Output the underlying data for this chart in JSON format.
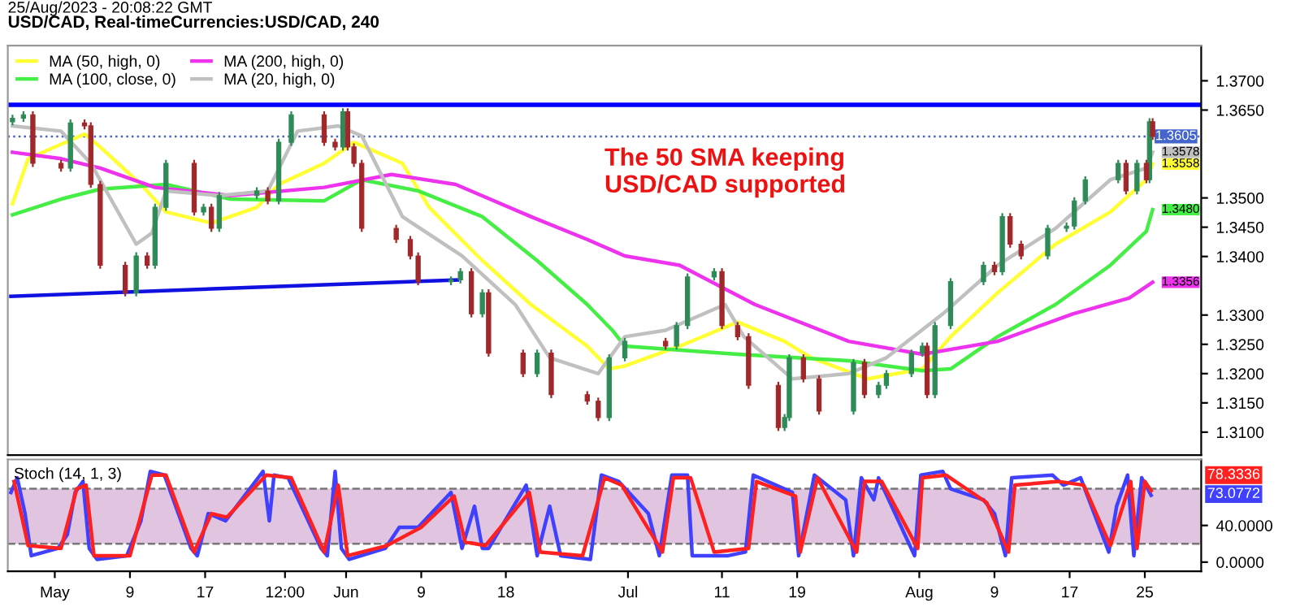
{
  "chart_data": [
    {
      "type": "candlestick",
      "title": "USD/CAD, Real-timeCurrencies:USD/CAD, 240",
      "annotations": [
        "25/Aug/2023 - 20:08:22 GMT",
        "The 50 SMA keeping\nUSD/CAD supported"
      ],
      "xlim": [
        "2023-04-26",
        "2023-08-31"
      ],
      "ylim": [
        1.3061,
        1.376
      ],
      "yticks": [
        {
          "value": 1.37,
          "label": "1.3700"
        },
        {
          "value": 1.365,
          "label": "1.3650"
        },
        {
          "value": 1.35,
          "label": "1.3500"
        },
        {
          "value": 1.345,
          "label": "1.3450"
        },
        {
          "value": 1.34,
          "label": "1.3400"
        },
        {
          "value": 1.33,
          "label": "1.3300"
        },
        {
          "value": 1.325,
          "label": "1.3250"
        },
        {
          "value": 1.32,
          "label": "1.3200"
        },
        {
          "value": 1.315,
          "label": "1.3150"
        },
        {
          "value": 1.31,
          "label": "1.3100"
        }
      ],
      "tick_labels": "y",
      "legend": "top left",
      "ref_lines": [
        {
          "axis": "y",
          "value": 1.3659,
          "color": "#0000ff",
          "line_style": "solid"
        },
        {
          "axis": "y",
          "value": 1.3605,
          "color": "#4466cc",
          "line_style": "dotted",
          "label": "1.3605"
        }
      ],
      "series": [
        {
          "type": "candlestick",
          "color": "#2e8b57",
          "x": [
            "2023-04-26T12:00",
            "2023-04-27T16:00",
            "2023-05-02T16:00",
            "2023-05-09T16:00",
            "2023-05-11T16:00",
            "2023-05-12T20:00",
            "2023-05-16T20:00",
            "2023-05-18T12:00",
            "2023-05-22T12:00",
            "2023-05-24T20:00",
            "2023-05-26T04:00",
            "2023-05-31T16:00",
            "2023-06-12T04:00",
            "2023-06-13T04:00",
            "2023-06-15T12:00",
            "2023-06-21T08:00",
            "2023-06-29T00:00",
            "2023-06-30T16:00",
            "2023-07-06T04:00",
            "2023-07-07T08:00",
            "2023-07-10T04:00",
            "2023-07-17T16:00",
            "2023-07-18T04:00",
            "2023-07-25T00:00",
            "2023-07-27T16:00",
            "2023-07-28T12:00",
            "2023-07-31T04:00",
            "2023-08-01T08:00",
            "2023-08-02T16:00",
            "2023-08-04T08:00",
            "2023-08-07T20:00",
            "2023-08-09T20:00",
            "2023-08-14T16:00",
            "2023-08-16T16:00",
            "2023-08-17T12:00",
            "2023-08-18T16:00",
            "2023-08-22T04:00",
            "2023-08-24T04:00",
            "2023-08-25T12:00"
          ],
          "ohlc": [
            [
              1.363,
              1.3642,
              1.3624,
              1.3636
            ],
            [
              1.3636,
              1.3648,
              1.363,
              1.3642
            ],
            [
              1.3551,
              1.3634,
              1.3545,
              1.3628
            ],
            [
              1.3338,
              1.3407,
              1.3332,
              1.3401
            ],
            [
              1.3385,
              1.349,
              1.3379,
              1.3484
            ],
            [
              1.3484,
              1.3565,
              1.3478,
              1.3559
            ],
            [
              1.3476,
              1.349,
              1.347,
              1.3484
            ],
            [
              1.3448,
              1.351,
              1.3442,
              1.3504
            ],
            [
              1.3504,
              1.3518,
              1.3498,
              1.3512
            ],
            [
              1.3495,
              1.3601,
              1.3489,
              1.3595
            ],
            [
              1.3595,
              1.3648,
              1.3589,
              1.3642
            ],
            [
              1.3587,
              1.3653,
              1.3581,
              1.3647
            ],
            [
              1.3357,
              1.3366,
              1.3351,
              1.336
            ],
            [
              1.336,
              1.338,
              1.3354,
              1.3374
            ],
            [
              1.3302,
              1.3344,
              1.3296,
              1.3338
            ],
            [
              1.32,
              1.3241,
              1.3194,
              1.3235
            ],
            [
              1.3125,
              1.3233,
              1.3119,
              1.3227
            ],
            [
              1.3227,
              1.3261,
              1.3221,
              1.3255
            ],
            [
              1.3247,
              1.3288,
              1.3241,
              1.3282
            ],
            [
              1.3282,
              1.3371,
              1.3276,
              1.3365
            ],
            [
              1.3365,
              1.338,
              1.3359,
              1.3374
            ],
            [
              1.3108,
              1.3131,
              1.3102,
              1.3125
            ],
            [
              1.3125,
              1.3233,
              1.3119,
              1.3227
            ],
            [
              1.3136,
              1.3225,
              1.313,
              1.3219
            ],
            [
              1.3164,
              1.3186,
              1.3158,
              1.318
            ],
            [
              1.318,
              1.3206,
              1.3174,
              1.32
            ],
            [
              1.32,
              1.3241,
              1.3194,
              1.3235
            ],
            [
              1.3235,
              1.3253,
              1.3229,
              1.3247
            ],
            [
              1.3164,
              1.3288,
              1.3158,
              1.3282
            ],
            [
              1.3282,
              1.3363,
              1.3276,
              1.3357
            ],
            [
              1.3357,
              1.3391,
              1.3351,
              1.3385
            ],
            [
              1.3374,
              1.3474,
              1.3368,
              1.3468
            ],
            [
              1.3401,
              1.3454,
              1.3395,
              1.3448
            ],
            [
              1.3448,
              1.3458,
              1.3442,
              1.3452
            ],
            [
              1.3452,
              1.3501,
              1.3446,
              1.3495
            ],
            [
              1.3495,
              1.3537,
              1.3489,
              1.3531
            ],
            [
              1.3531,
              1.3565,
              1.3525,
              1.3559
            ],
            [
              1.3512,
              1.3565,
              1.3506,
              1.3559
            ],
            [
              1.3531,
              1.3636,
              1.3525,
              1.363
            ]
          ]
        },
        {
          "type": "candlestick",
          "color": "#a0282b",
          "x": [
            "2023-04-28T16:00",
            "2023-05-01T16:00",
            "2023-05-04T04:00",
            "2023-05-04T20:00",
            "2023-05-05T20:00",
            "2023-05-08T12:00",
            "2023-05-10T20:00",
            "2023-05-15T20:00",
            "2023-05-17T16:00",
            "2023-05-23T16:00",
            "2023-05-29T16:00",
            "2023-05-30T20:00",
            "2023-06-01T04:00",
            "2023-06-01T20:00",
            "2023-06-02T16:00",
            "2023-06-06T08:00",
            "2023-06-07T20:00",
            "2023-06-08T16:00",
            "2023-06-14T08:00",
            "2023-06-16T04:00",
            "2023-06-19T20:00",
            "2023-06-22T20:00",
            "2023-06-26T16:00",
            "2023-06-27T20:00",
            "2023-07-05T00:00",
            "2023-07-11T00:00",
            "2023-07-12T16:00",
            "2023-07-13T20:00",
            "2023-07-17T00:00",
            "2023-07-19T16:00",
            "2023-07-21T08:00",
            "2023-07-26T04:00",
            "2023-08-01T20:00",
            "2023-08-09T00:00",
            "2023-08-10T16:00",
            "2023-08-11T20:00",
            "2023-08-23T00:00",
            "2023-08-25T04:00",
            "2023-08-25T20:00"
          ],
          "ohlc": [
            [
              1.3642,
              1.3648,
              1.3553,
              1.3559
            ],
            [
              1.3559,
              1.3565,
              1.3545,
              1.3551
            ],
            [
              1.3628,
              1.3634,
              1.3617,
              1.3623
            ],
            [
              1.3623,
              1.3629,
              1.3517,
              1.3523
            ],
            [
              1.3523,
              1.3529,
              1.3379,
              1.3385
            ],
            [
              1.3385,
              1.3391,
              1.3332,
              1.3338
            ],
            [
              1.3401,
              1.3407,
              1.3379,
              1.3385
            ],
            [
              1.3559,
              1.3565,
              1.347,
              1.3476
            ],
            [
              1.3484,
              1.349,
              1.3442,
              1.3448
            ],
            [
              1.3512,
              1.3518,
              1.3489,
              1.3495
            ],
            [
              1.3642,
              1.3648,
              1.3589,
              1.3595
            ],
            [
              1.3595,
              1.3601,
              1.3581,
              1.3587
            ],
            [
              1.3647,
              1.3653,
              1.3581,
              1.3587
            ],
            [
              1.3587,
              1.3593,
              1.3553,
              1.3559
            ],
            [
              1.3559,
              1.3565,
              1.3442,
              1.3448
            ],
            [
              1.3448,
              1.3454,
              1.3423,
              1.3429
            ],
            [
              1.3429,
              1.3435,
              1.3395,
              1.3401
            ],
            [
              1.3401,
              1.3407,
              1.3351,
              1.3357
            ],
            [
              1.3374,
              1.338,
              1.3296,
              1.3302
            ],
            [
              1.3338,
              1.3344,
              1.3229,
              1.3235
            ],
            [
              1.3235,
              1.3241,
              1.3194,
              1.32
            ],
            [
              1.3235,
              1.3241,
              1.3158,
              1.3164
            ],
            [
              1.3164,
              1.317,
              1.3147,
              1.3153
            ],
            [
              1.3153,
              1.3159,
              1.3119,
              1.3125
            ],
            [
              1.3255,
              1.3261,
              1.3241,
              1.3247
            ],
            [
              1.3374,
              1.338,
              1.3276,
              1.3282
            ],
            [
              1.3282,
              1.3288,
              1.3257,
              1.3263
            ],
            [
              1.3263,
              1.3269,
              1.3174,
              1.318
            ],
            [
              1.318,
              1.3186,
              1.3102,
              1.3108
            ],
            [
              1.3227,
              1.3233,
              1.3185,
              1.3191
            ],
            [
              1.3191,
              1.3197,
              1.313,
              1.3136
            ],
            [
              1.3219,
              1.3225,
              1.3158,
              1.3164
            ],
            [
              1.3247,
              1.3253,
              1.3158,
              1.3164
            ],
            [
              1.3385,
              1.3391,
              1.3368,
              1.3374
            ],
            [
              1.3468,
              1.3474,
              1.3415,
              1.3421
            ],
            [
              1.3421,
              1.3427,
              1.3395,
              1.3401
            ],
            [
              1.3559,
              1.3565,
              1.3506,
              1.3512
            ],
            [
              1.3559,
              1.3565,
              1.3525,
              1.3531
            ],
            [
              1.363,
              1.3636,
              1.3599,
              1.3605
            ]
          ]
        },
        {
          "type": "line",
          "name": "MA (50, high, 0)",
          "color": "#ffff33",
          "x": [
            "2023-04-26T12:00",
            "2023-04-28T04:00",
            "2023-05-04T04:00",
            "2023-05-05T20:00",
            "2023-05-10T04:00",
            "2023-05-12T20:00",
            "2023-05-17T16:00",
            "2023-05-22T12:00",
            "2023-05-24T20:00",
            "2023-05-29T16:00",
            "2023-06-01T20:00",
            "2023-06-07T00:00",
            "2023-06-09T20:00",
            "2023-06-15T12:00",
            "2023-06-20T16:00",
            "2023-06-26T16:00",
            "2023-06-29T00:00",
            "2023-06-30T16:00",
            "2023-07-06T12:00",
            "2023-07-12T16:00",
            "2023-07-17T16:00",
            "2023-07-20T12:00",
            "2023-07-26T12:00",
            "2023-08-01T08:00",
            "2023-08-04T08:00",
            "2023-08-09T08:00",
            "2023-08-15T12:00",
            "2023-08-21T08:00",
            "2023-08-25T04:00",
            "2023-08-25T20:00"
          ],
          "values": [
            1.349,
            1.3567,
            1.3609,
            1.3587,
            1.3523,
            1.3476,
            1.3457,
            1.3484,
            1.3523,
            1.3559,
            1.3595,
            1.3559,
            1.3484,
            1.3393,
            1.3318,
            1.3247,
            1.3208,
            1.3213,
            1.3247,
            1.3288,
            1.3255,
            1.3227,
            1.3191,
            1.3208,
            1.3263,
            1.3338,
            1.3421,
            1.3476,
            1.3531,
            1.3558
          ],
          "value_labels": [
            null,
            null,
            null,
            null,
            null,
            null,
            null,
            null,
            null,
            null,
            null,
            null,
            null,
            null,
            null,
            null,
            null,
            null,
            null,
            null,
            null,
            null,
            null,
            null,
            null,
            null,
            null,
            null,
            null,
            "1.3558"
          ]
        },
        {
          "type": "line",
          "name": "MA (100, close, 0)",
          "color": "#44ee44",
          "x": [
            "2023-04-26T12:00",
            "2023-05-01T16:00",
            "2023-05-05T20:00",
            "2023-05-12T20:00",
            "2023-05-19T16:00",
            "2023-05-29T16:00",
            "2023-06-02T16:00",
            "2023-06-08T16:00",
            "2023-06-15T12:00",
            "2023-06-21T08:00",
            "2023-06-26T16:00",
            "2023-06-29T08:00",
            "2023-06-30T16:00",
            "2023-07-12T16:00",
            "2023-07-24T12:00",
            "2023-08-01T08:00",
            "2023-08-04T08:00",
            "2023-08-09T08:00",
            "2023-08-15T12:00",
            "2023-08-21T08:00",
            "2023-08-25T04:00",
            "2023-08-25T20:00"
          ],
          "values": [
            1.3471,
            1.3498,
            1.3515,
            1.3523,
            1.3498,
            1.3495,
            1.3531,
            1.3512,
            1.3468,
            1.3393,
            1.3318,
            1.3274,
            1.3247,
            1.3233,
            1.3222,
            1.3205,
            1.3208,
            1.3263,
            1.3318,
            1.3385,
            1.3443,
            1.348
          ],
          "value_labels": [
            null,
            null,
            null,
            null,
            null,
            null,
            null,
            null,
            null,
            null,
            null,
            null,
            null,
            null,
            null,
            null,
            null,
            null,
            null,
            null,
            null,
            "1.3480"
          ]
        },
        {
          "type": "line",
          "name": "MA (200, high, 0)",
          "color": "#ee33ee",
          "x": [
            "2023-04-26T12:00",
            "2023-05-01T16:00",
            "2023-05-05T20:00",
            "2023-05-11T16:00",
            "2023-05-19T16:00",
            "2023-05-29T16:00",
            "2023-06-05T20:00",
            "2023-06-12T16:00",
            "2023-06-20T16:00",
            "2023-06-26T16:00",
            "2023-06-30T16:00",
            "2023-07-06T12:00",
            "2023-07-14T12:00",
            "2023-07-24T12:00",
            "2023-08-01T08:00",
            "2023-08-09T08:00",
            "2023-08-17T08:00",
            "2023-08-23T08:00",
            "2023-08-25T20:00"
          ],
          "values": [
            1.3578,
            1.3567,
            1.3551,
            1.3518,
            1.3504,
            1.3518,
            1.354,
            1.3523,
            1.3468,
            1.3429,
            1.3401,
            1.3385,
            1.3318,
            1.3255,
            1.3233,
            1.3255,
            1.3302,
            1.3329,
            1.3356
          ],
          "value_labels": [
            null,
            null,
            null,
            null,
            null,
            null,
            null,
            null,
            null,
            null,
            null,
            null,
            null,
            null,
            null,
            null,
            null,
            null,
            "1.3356"
          ]
        },
        {
          "type": "line",
          "name": "MA (20, high, 0)",
          "color": "#c0c0c0",
          "x": [
            "2023-04-26T12:00",
            "2023-05-01T16:00",
            "2023-05-04T20:00",
            "2023-05-09T16:00",
            "2023-05-11T08:00",
            "2023-05-12T20:00",
            "2023-05-18T12:00",
            "2023-05-23T16:00",
            "2023-05-26T20:00",
            "2023-05-31T04:00",
            "2023-06-02T16:00",
            "2023-06-07T00:00",
            "2023-06-13T08:00",
            "2023-06-19T00:00",
            "2023-06-22T16:00",
            "2023-06-27T20:00",
            "2023-06-30T16:00",
            "2023-07-05T00:00",
            "2023-07-11T08:00",
            "2023-07-13T08:00",
            "2023-07-18T12:00",
            "2023-07-24T12:00",
            "2023-07-28T12:00",
            "2023-08-03T12:00",
            "2023-08-09T08:00",
            "2023-08-15T12:00",
            "2023-08-21T08:00",
            "2023-08-25T04:00",
            "2023-08-25T20:00"
          ],
          "values": [
            1.3623,
            1.3614,
            1.3559,
            1.3421,
            1.344,
            1.3512,
            1.3504,
            1.3512,
            1.3614,
            1.3623,
            1.3606,
            1.3468,
            1.3401,
            1.3318,
            1.3227,
            1.32,
            1.3263,
            1.3274,
            1.3318,
            1.3263,
            1.3191,
            1.32,
            1.3227,
            1.3302,
            1.3385,
            1.3448,
            1.3531,
            1.3551,
            1.3578
          ],
          "value_labels": [
            null,
            null,
            null,
            null,
            null,
            null,
            null,
            null,
            null,
            null,
            null,
            null,
            null,
            null,
            null,
            null,
            null,
            null,
            null,
            null,
            null,
            null,
            null,
            null,
            null,
            null,
            null,
            null,
            "1.3578"
          ]
        },
        {
          "type": "line",
          "color": "#1010e0",
          "x": [
            "2023-04-26T08:00",
            "2023-06-12T20:00"
          ],
          "values": [
            1.3332,
            1.336
          ]
        }
      ]
    },
    {
      "type": "line",
      "title": "Stoch (14, 1, 3)",
      "xlim": [
        "2023-04-26",
        "2023-08-31"
      ],
      "ylim": [
        -10,
        112
      ],
      "xticks": [
        {
          "value": "2023-05-01",
          "label": "May"
        },
        {
          "value": "2023-05-09",
          "label": "9"
        },
        {
          "value": "2023-05-17",
          "label": "17"
        },
        {
          "value": "2023-05-25T12:00",
          "label": "12:00"
        },
        {
          "value": "2023-06-01",
          "label": "Jun"
        },
        {
          "value": "2023-06-09",
          "label": "9"
        },
        {
          "value": "2023-06-18",
          "label": "18"
        },
        {
          "value": "2023-07-01",
          "label": "Jul"
        },
        {
          "value": "2023-07-11",
          "label": "11"
        },
        {
          "value": "2023-07-19",
          "label": "19"
        },
        {
          "value": "2023-08-01",
          "label": "Aug"
        },
        {
          "value": "2023-08-09",
          "label": "9"
        },
        {
          "value": "2023-08-17",
          "label": "17"
        },
        {
          "value": "2023-08-25",
          "label": "25"
        }
      ],
      "yticks": [
        {
          "value": 40,
          "label": "40.0000"
        },
        {
          "value": 0,
          "label": "0.0000"
        }
      ],
      "bands": [
        {
          "axis": "y",
          "from": 20,
          "to": 80,
          "color": "#e0c4e0"
        }
      ],
      "ref_lines": [
        {
          "axis": "y",
          "value": 80,
          "color": "#777777",
          "line_style": "dashed"
        },
        {
          "axis": "y",
          "value": 20,
          "color": "#777777",
          "line_style": "dashed"
        }
      ],
      "annotations": [
        "78.3336",
        "73.0772"
      ],
      "series": [
        {
          "color": "#4040ff",
          "x": [
            "2023-04-26T08:00",
            "2023-04-27T00:00",
            "2023-04-27T20:00",
            "2023-04-28T12:00",
            "2023-05-01T08:00",
            "2023-05-02T08:00",
            "2023-05-03T04:00",
            "2023-05-04T00:00",
            "2023-05-04T16:00",
            "2023-05-05T12:00",
            "2023-05-08T16:00",
            "2023-05-10T04:00",
            "2023-05-11T04:00",
            "2023-05-12T16:00",
            "2023-05-15T12:00",
            "2023-05-16T04:00",
            "2023-05-17T08:00",
            "2023-05-19T04:00",
            "2023-05-23T04:00",
            "2023-05-23T20:00",
            "2023-05-24T08:00",
            "2023-05-25T20:00",
            "2023-05-29T08:00",
            "2023-05-30T00:00",
            "2023-05-30T20:00",
            "2023-05-31T12:00",
            "2023-06-01T08:00",
            "2023-06-05T04:00",
            "2023-06-06T16:00",
            "2023-06-08T16:00",
            "2023-06-12T04:00",
            "2023-06-13T08:00",
            "2023-06-14T16:00",
            "2023-06-15T12:00",
            "2023-06-16T04:00",
            "2023-06-20T04:00",
            "2023-06-21T08:00",
            "2023-06-22T16:00",
            "2023-06-23T20:00",
            "2023-06-27T00:00",
            "2023-06-28T04:00",
            "2023-06-30T00:00",
            "2023-07-03T04:00",
            "2023-07-04T08:00",
            "2023-07-05T16:00",
            "2023-07-07T08:00",
            "2023-07-07T20:00",
            "2023-07-11T16:00",
            "2023-07-13T12:00",
            "2023-07-14T08:00",
            "2023-07-18T12:00",
            "2023-07-19T04:00",
            "2023-07-20T20:00",
            "2023-07-24T04:00",
            "2023-07-25T00:00",
            "2023-07-25T20:00",
            "2023-07-27T04:00",
            "2023-07-27T16:00",
            "2023-07-31T12:00",
            "2023-08-01T04:00",
            "2023-08-03T12:00",
            "2023-08-04T08:00",
            "2023-08-07T20:00",
            "2023-08-09T00:00",
            "2023-08-10T04:00",
            "2023-08-10T20:00",
            "2023-08-15T04:00",
            "2023-08-16T08:00",
            "2023-08-18T04:00",
            "2023-08-21T04:00",
            "2023-08-22T00:00",
            "2023-08-23T04:00",
            "2023-08-23T20:00",
            "2023-08-24T16:00",
            "2023-08-25T16:00"
          ],
          "values": [
            76,
            92,
            53,
            7,
            15,
            30,
            76,
            88,
            15,
            3,
            7,
            45,
            99,
            95,
            15,
            7,
            53,
            45,
            99,
            45,
            95,
            92,
            15,
            7,
            99,
            15,
            3,
            15,
            38,
            38,
            76,
            15,
            61,
            15,
            15,
            84,
            7,
            61,
            7,
            3,
            95,
            88,
            53,
            7,
            95,
            95,
            7,
            7,
            11,
            95,
            76,
            7,
            95,
            68,
            7,
            92,
            68,
            92,
            7,
            95,
            99,
            80,
            68,
            53,
            7,
            92,
            95,
            84,
            92,
            11,
            61,
            95,
            7,
            92,
            73
          ]
        },
        {
          "color": "#ff2020",
          "x": [
            "2023-04-26T16:00",
            "2023-04-28T04:00",
            "2023-05-01T16:00",
            "2023-05-03T08:00",
            "2023-05-04T08:00",
            "2023-05-05T04:00",
            "2023-05-09T00:00",
            "2023-05-11T08:00",
            "2023-05-12T20:00",
            "2023-05-15T20:00",
            "2023-05-17T16:00",
            "2023-05-19T08:00",
            "2023-05-23T12:00",
            "2023-05-26T04:00",
            "2023-05-29T16:00",
            "2023-05-31T04:00",
            "2023-06-01T04:00",
            "2023-06-05T08:00",
            "2023-06-09T00:00",
            "2023-06-12T12:00",
            "2023-06-13T16:00",
            "2023-06-15T20:00",
            "2023-06-20T12:00",
            "2023-06-21T16:00",
            "2023-06-26T04:00",
            "2023-06-28T12:00",
            "2023-06-30T08:00",
            "2023-07-04T16:00",
            "2023-07-05T20:00",
            "2023-07-07T16:00",
            "2023-07-10T04:00",
            "2023-07-13T20:00",
            "2023-07-14T16:00",
            "2023-07-18T20:00",
            "2023-07-19T08:00",
            "2023-07-21T04:00",
            "2023-07-25T08:00",
            "2023-07-26T04:00",
            "2023-07-28T00:00",
            "2023-07-31T20:00",
            "2023-08-01T08:00",
            "2023-08-03T20:00",
            "2023-08-08T04:00",
            "2023-08-10T12:00",
            "2023-08-11T04:00",
            "2023-08-15T20:00",
            "2023-08-18T12:00",
            "2023-08-21T08:00",
            "2023-08-23T12:00",
            "2023-08-24T04:00",
            "2023-08-25T00:00",
            "2023-08-25T16:00"
          ],
          "values": [
            88,
            18,
            15,
            80,
            84,
            7,
            7,
            95,
            95,
            11,
            53,
            49,
            95,
            92,
            11,
            84,
            7,
            18,
            38,
            72,
            22,
            18,
            76,
            11,
            7,
            92,
            84,
            11,
            92,
            92,
            11,
            15,
            88,
            72,
            11,
            92,
            11,
            88,
            88,
            15,
            92,
            95,
            65,
            11,
            84,
            88,
            84,
            18,
            88,
            15,
            88,
            78
          ]
        }
      ]
    }
  ]
}
